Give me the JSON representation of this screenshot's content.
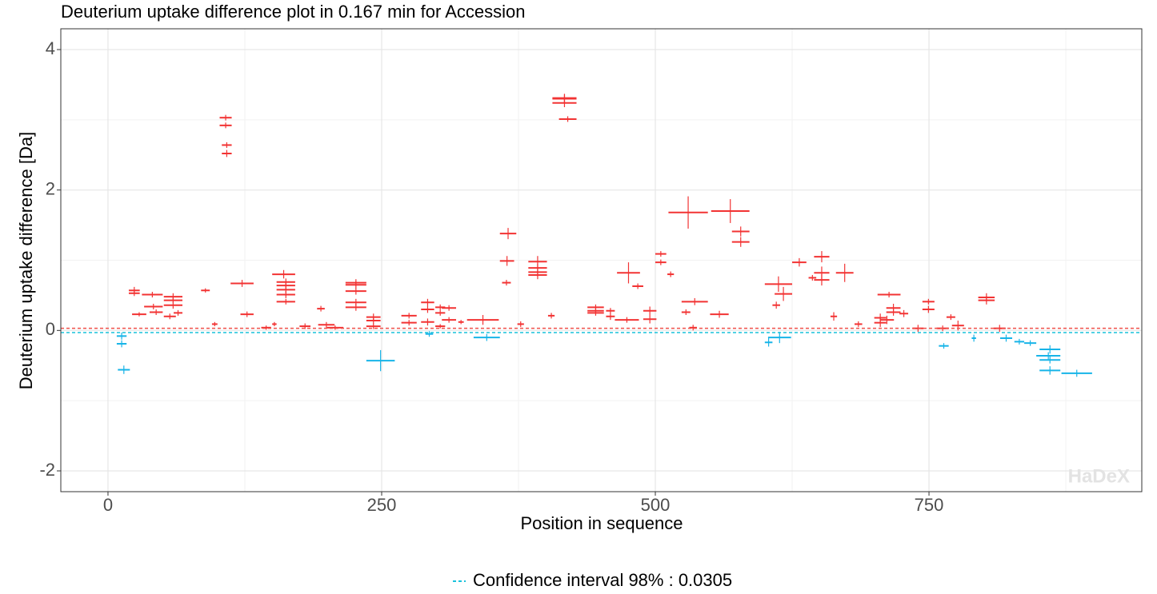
{
  "chart_data": {
    "type": "difference",
    "title": "Deuterium uptake difference plot in 0.167 min for Accession",
    "x_label": "Position in sequence",
    "y_label": "Deuterium uptake difference [Da]",
    "xlim": [
      -43.1,
      944.4
    ],
    "ylim": [
      -2.296,
      4.296
    ],
    "xticks": [
      0,
      250,
      500,
      750
    ],
    "yticks": [
      -2,
      0,
      2,
      4
    ],
    "xminor": [
      125,
      375,
      625,
      875
    ],
    "yminor": [
      -1,
      1,
      3
    ],
    "grid": true,
    "confidence_limit": 0.0305,
    "legend_label": "Confidence interval 98% : 0.0305",
    "ci_colors": {
      "upper": "#f0504a",
      "lower": "#19c2dc"
    },
    "watermark": "HaDeX",
    "series": [
      {
        "color": "#f23333",
        "start": [
          19,
          19,
          22,
          31,
          33,
          38,
          51,
          51,
          51,
          51,
          60,
          85,
          95,
          102,
          102,
          104,
          104,
          112,
          121,
          140,
          150,
          150,
          154,
          154,
          154,
          154,
          154,
          175,
          191,
          192,
          200,
          217,
          217,
          217,
          217,
          217,
          236,
          236,
          236,
          268,
          268,
          286,
          286,
          286,
          299,
          299,
          299,
          305,
          305,
          320,
          328,
          358,
          358,
          360,
          374,
          384,
          384,
          384,
          384,
          402,
          406,
          406,
          406,
          412,
          438,
          438,
          438,
          455,
          455,
          463,
          465,
          479,
          489,
          489,
          500,
          500,
          511,
          512,
          524,
          524,
          531,
          550,
          551,
          570,
          570,
          600,
          609,
          607,
          625,
          640,
          645,
          645,
          645,
          660,
          665,
          682,
          700,
          700,
          703,
          705,
          711,
          711,
          723,
          735,
          744,
          744,
          757,
          766,
          771,
          795,
          795,
          809
        ],
        "end": [
          29,
          29,
          35,
          50,
          50,
          50,
          68,
          68,
          68,
          62,
          68,
          93,
          100,
          113,
          113,
          113,
          113,
          133,
          133,
          149,
          154,
          171,
          171,
          171,
          171,
          171,
          171,
          185,
          198,
          207,
          215,
          236,
          236,
          236,
          236,
          236,
          249,
          249,
          249,
          282,
          282,
          298,
          298,
          298,
          308,
          308,
          308,
          318,
          318,
          325,
          357,
          373,
          371,
          368,
          380,
          401,
          401,
          401,
          401,
          408,
          428,
          428,
          428,
          428,
          453,
          453,
          453,
          463,
          463,
          485,
          486,
          489,
          501,
          501,
          510,
          510,
          517,
          548,
          548,
          532,
          538,
          567,
          586,
          586,
          586,
          625,
          625,
          614,
          638,
          647,
          659,
          659,
          659,
          666,
          681,
          689,
          711,
          711,
          724,
          718,
          724,
          724,
          731,
          745,
          755,
          755,
          768,
          774,
          782,
          810,
          810,
          820
        ],
        "values": [
          0.57,
          0.53,
          0.23,
          0.51,
          0.34,
          0.26,
          0.48,
          0.43,
          0.36,
          0.2,
          0.25,
          0.57,
          0.09,
          3.03,
          2.92,
          2.64,
          2.52,
          0.67,
          0.23,
          0.04,
          0.09,
          0.8,
          0.69,
          0.64,
          0.58,
          0.51,
          0.41,
          0.06,
          0.31,
          0.08,
          0.04,
          0.68,
          0.65,
          0.56,
          0.4,
          0.33,
          0.19,
          0.14,
          0.06,
          0.21,
          0.11,
          0.4,
          0.3,
          0.12,
          0.33,
          0.25,
          0.06,
          0.32,
          0.15,
          0.12,
          0.15,
          1.38,
          0.99,
          0.68,
          0.09,
          0.98,
          0.89,
          0.83,
          0.79,
          0.21,
          3.3,
          3.24,
          3.31,
          3.01,
          0.33,
          0.28,
          0.25,
          0.28,
          0.2,
          0.15,
          0.82,
          0.63,
          0.28,
          0.16,
          1.09,
          0.97,
          0.8,
          1.68,
          0.41,
          0.26,
          0.04,
          0.23,
          1.7,
          1.41,
          1.26,
          0.66,
          0.52,
          0.36,
          0.97,
          0.75,
          1.05,
          0.82,
          0.72,
          0.2,
          0.82,
          0.09,
          0.18,
          0.11,
          0.51,
          0.15,
          0.32,
          0.26,
          0.24,
          0.03,
          0.41,
          0.3,
          0.03,
          0.19,
          0.07,
          0.47,
          0.43,
          0.03
        ],
        "errors": [
          0.05,
          0.04,
          0.03,
          0.04,
          0.04,
          0.04,
          0.05,
          0.04,
          0.05,
          0.04,
          0.04,
          0.03,
          0.03,
          0.04,
          0.04,
          0.04,
          0.05,
          0.05,
          0.04,
          0.03,
          0.03,
          0.06,
          0.05,
          0.05,
          0.05,
          0.05,
          0.04,
          0.04,
          0.04,
          0.04,
          0.03,
          0.05,
          0.05,
          0.05,
          0.05,
          0.05,
          0.05,
          0.05,
          0.04,
          0.04,
          0.04,
          0.05,
          0.05,
          0.05,
          0.04,
          0.04,
          0.03,
          0.04,
          0.04,
          0.03,
          0.07,
          0.08,
          0.07,
          0.04,
          0.04,
          0.08,
          0.06,
          0.06,
          0.06,
          0.04,
          0.06,
          0.06,
          0.06,
          0.04,
          0.04,
          0.04,
          0.04,
          0.04,
          0.05,
          0.04,
          0.15,
          0.04,
          0.06,
          0.06,
          0.04,
          0.04,
          0.04,
          0.23,
          0.05,
          0.04,
          0.04,
          0.05,
          0.17,
          0.07,
          0.07,
          0.11,
          0.1,
          0.05,
          0.06,
          0.04,
          0.08,
          0.09,
          0.08,
          0.06,
          0.13,
          0.04,
          0.06,
          0.06,
          0.04,
          0.06,
          0.06,
          0.05,
          0.05,
          0.05,
          0.04,
          0.05,
          0.04,
          0.04,
          0.07,
          0.06,
          0.06,
          0.05
        ]
      },
      {
        "color": "#17b4e8",
        "start": [
          8,
          8,
          9,
          236,
          290,
          334,
          600,
          603,
          759,
          789,
          815,
          828,
          837,
          848,
          851,
          851,
          851,
          871
        ],
        "end": [
          17,
          17,
          20,
          262,
          297,
          358,
          607,
          624,
          768,
          793,
          826,
          837,
          848,
          870,
          870,
          870,
          870,
          899
        ],
        "values": [
          -0.08,
          -0.19,
          -0.56,
          -0.43,
          -0.05,
          -0.1,
          -0.17,
          -0.1,
          -0.22,
          -0.11,
          -0.11,
          -0.16,
          -0.18,
          -0.36,
          -0.27,
          -0.42,
          -0.57,
          -0.61
        ],
        "errors": [
          0.05,
          0.05,
          0.06,
          0.15,
          0.04,
          0.05,
          0.06,
          0.08,
          0.04,
          0.05,
          0.05,
          0.04,
          0.04,
          0.05,
          0.06,
          0.05,
          0.06,
          0.05
        ]
      }
    ]
  }
}
